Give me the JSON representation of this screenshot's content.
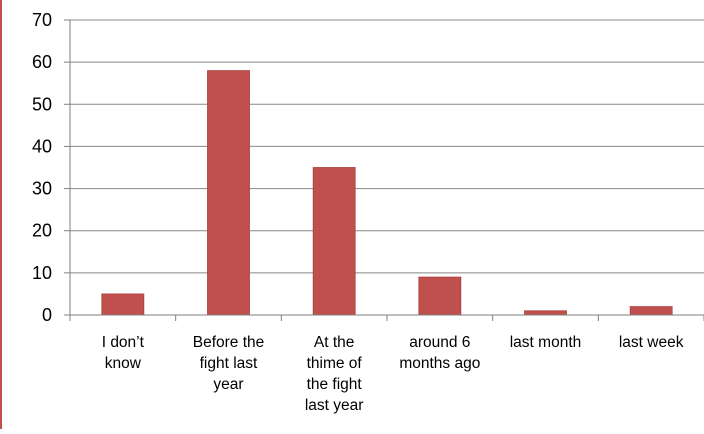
{
  "chart_data": {
    "type": "bar",
    "title": "",
    "xlabel": "",
    "ylabel": "",
    "categories": [
      [
        "I don’t",
        "know"
      ],
      [
        "Before the",
        "fight last",
        "year"
      ],
      [
        "At the",
        "thime of",
        "the fight",
        "last year"
      ],
      [
        "around 6",
        "months ago"
      ],
      [
        "last month"
      ],
      [
        "last week"
      ]
    ],
    "values": [
      5,
      58,
      35,
      9,
      1,
      2
    ],
    "ylim": [
      0,
      70
    ],
    "yticks": [
      "0",
      "10",
      "20",
      "30",
      "40",
      "50",
      "60",
      "70"
    ],
    "grid": true,
    "legend": "none",
    "colors": {
      "bar": "#c0504d",
      "bar_edge": "#a8403d",
      "grid": "#888888",
      "axis": "#7f7f7f",
      "text": "#000000",
      "border": "#c0504d"
    }
  }
}
